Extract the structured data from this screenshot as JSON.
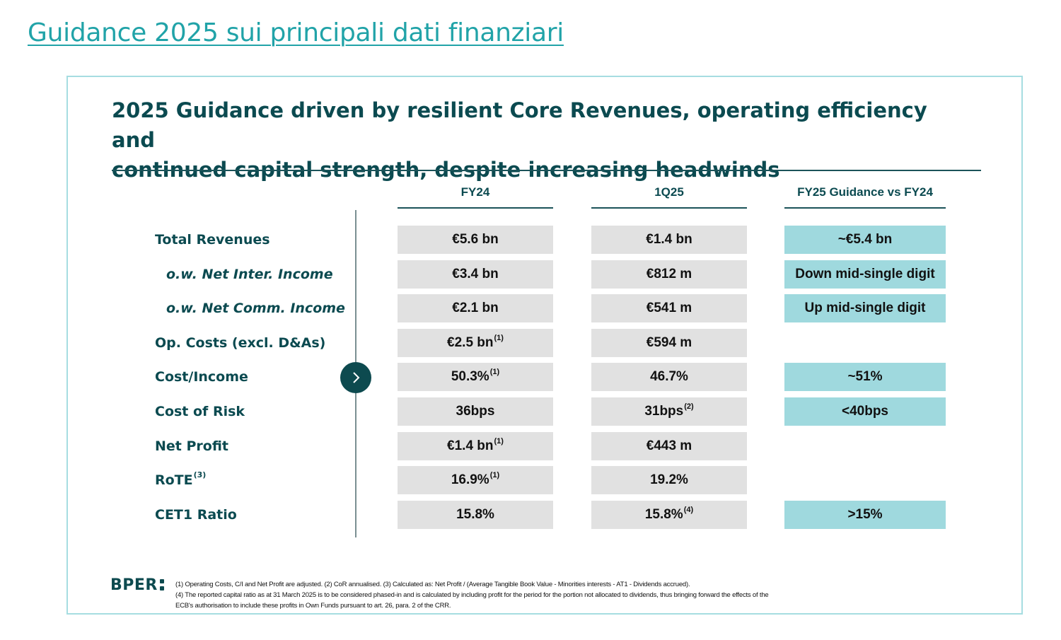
{
  "page_title": "Guidance 2025 sui principali dati finanziari",
  "slide": {
    "heading_line1": "2025 Guidance driven by resilient Core Revenues, operating efficiency and",
    "heading_line2": "continued capital strength, despite increasing headwinds",
    "columns": [
      "FY24",
      "1Q25",
      "FY25 Guidance vs FY24"
    ],
    "rows": [
      {
        "label": "Total Revenues",
        "label_sup": "",
        "sub": false,
        "fy24": "€5.6 bn",
        "fy24_sup": "",
        "q1": "€1.4 bn",
        "q1_sup": "",
        "guidance": "~€5.4 bn"
      },
      {
        "label": "o.w. Net Inter. Income",
        "label_sup": "",
        "sub": true,
        "fy24": "€3.4 bn",
        "fy24_sup": "",
        "q1": "€812 m",
        "q1_sup": "",
        "guidance": "Down mid-single digit"
      },
      {
        "label": "o.w. Net Comm. Income",
        "label_sup": "",
        "sub": true,
        "fy24": "€2.1 bn",
        "fy24_sup": "",
        "q1": "€541 m",
        "q1_sup": "",
        "guidance": "Up mid-single digit"
      },
      {
        "label": "Op. Costs (excl. D&As)",
        "label_sup": "",
        "sub": false,
        "fy24": "€2.5 bn",
        "fy24_sup": "(1)",
        "q1": "€594 m",
        "q1_sup": "",
        "guidance": ""
      },
      {
        "label": "Cost/Income",
        "label_sup": "",
        "sub": false,
        "fy24": "50.3%",
        "fy24_sup": "(1)",
        "q1": "46.7%",
        "q1_sup": "",
        "guidance": "~51%"
      },
      {
        "label": "Cost of Risk",
        "label_sup": "",
        "sub": false,
        "fy24": "36bps",
        "fy24_sup": "",
        "q1": "31bps",
        "q1_sup": "(2)",
        "guidance": "<40bps"
      },
      {
        "label": "Net Profit",
        "label_sup": "",
        "sub": false,
        "fy24": "€1.4 bn",
        "fy24_sup": "(1)",
        "q1": "€443 m",
        "q1_sup": "",
        "guidance": ""
      },
      {
        "label": "RoTE",
        "label_sup": "(3)",
        "sub": false,
        "fy24": "16.9%",
        "fy24_sup": "(1)",
        "q1": "19.2%",
        "q1_sup": "",
        "guidance": ""
      },
      {
        "label": "CET1 Ratio",
        "label_sup": "",
        "sub": false,
        "fy24": "15.8%",
        "fy24_sup": "",
        "q1": "15.8%",
        "q1_sup": "(4)",
        "guidance": ">15%"
      }
    ],
    "logo_text": "BPER",
    "footnotes": [
      "(1) Operating Costs, C/I and Net Profit are adjusted.    (2) CoR annualised.    (3) Calculated as: Net Profit / (Average Tangible Book Value - Minorities interests - AT1 - Dividends accrued).",
      "(4) The reported capital ratio as at 31 March 2025 is to be considered phased-in and is calculated by including profit for the period for the portion not allocated to dividends, thus bringing forward the effects of the",
      "ECB's authorisation to include these profits in Own Funds pursuant to art. 26, para. 2 of the CRR."
    ],
    "colors": {
      "teal_cell": "#9fd9de",
      "grey_cell": "#e1e1e1",
      "dark_teal": "#0b4a50",
      "title_teal": "#21a3a8"
    },
    "icons": {
      "arrow_button": "chevron-right-icon"
    }
  }
}
